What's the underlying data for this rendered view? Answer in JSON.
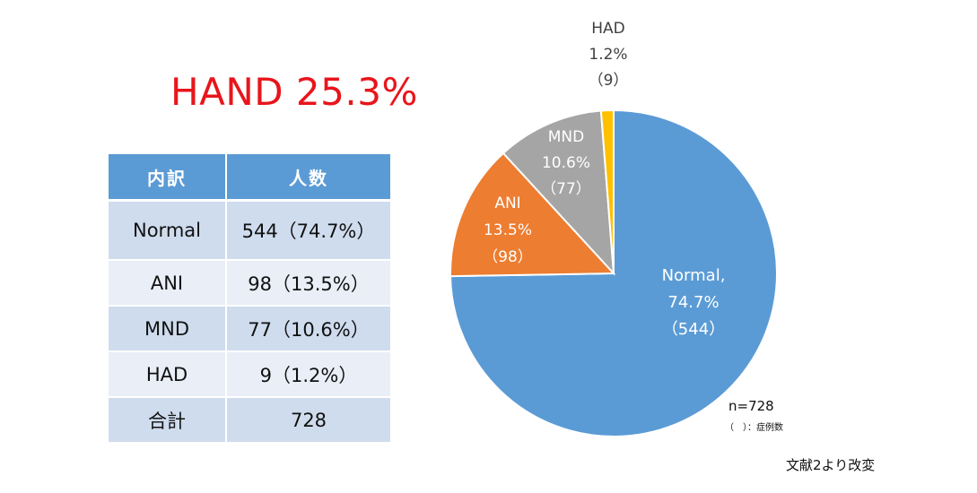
{
  "headline": "HAND 25.3%",
  "table": {
    "headers": [
      "内訳",
      "人数"
    ],
    "rows": [
      {
        "category": "Normal",
        "count": "544（74.7%）"
      },
      {
        "category": "ANI",
        "count": "98（13.5%）"
      },
      {
        "category": "MND",
        "count": "77（10.6%）"
      },
      {
        "category": "HAD",
        "count": "9（1.2%）"
      },
      {
        "category": "合計",
        "count": "728"
      }
    ]
  },
  "chart_data": {
    "type": "pie",
    "slices": [
      {
        "name": "Normal",
        "label": [
          "Normal,",
          "74.7%",
          "（544）"
        ],
        "value": 544,
        "percent": 74.7,
        "color": "#5b9bd5",
        "text_color": "#ffffff"
      },
      {
        "name": "ANI",
        "label": [
          "ANI",
          "13.5%",
          "（98）"
        ],
        "value": 98,
        "percent": 13.5,
        "color": "#ed7d31",
        "text_color": "#ffffff"
      },
      {
        "name": "MND",
        "label": [
          "MND",
          "10.6%",
          "（77）"
        ],
        "value": 77,
        "percent": 10.6,
        "color": "#a5a5a5",
        "text_color": "#ffffff"
      },
      {
        "name": "HAD",
        "label": [
          "HAD",
          "1.2%",
          "（9）"
        ],
        "value": 9,
        "percent": 1.2,
        "color": "#ffc000",
        "text_color": "#404040"
      }
    ],
    "total_note": "n=728",
    "legend_note": "（　）：症例数"
  },
  "source_note": "文献2より改変"
}
